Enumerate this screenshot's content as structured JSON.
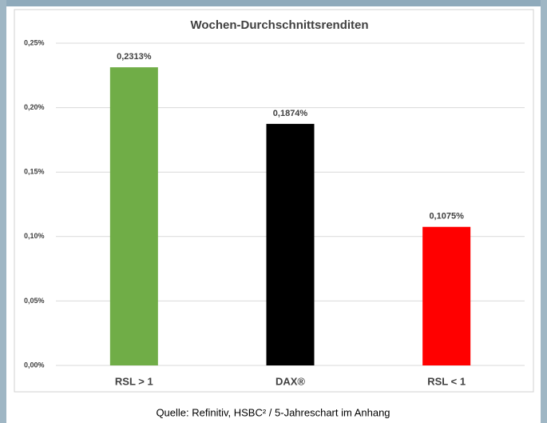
{
  "chart_data": {
    "type": "bar",
    "title": "Wochen-Durchschnittsrenditen",
    "categories": [
      "RSL > 1",
      "DAX®",
      "RSL < 1"
    ],
    "values": [
      0.2313,
      0.1874,
      0.1075
    ],
    "value_labels": [
      "0,2313%",
      "0,1874%",
      "0,1075%"
    ],
    "colors": [
      "#70ad47",
      "#000000",
      "#ff0000"
    ],
    "ylim": [
      0,
      0.25
    ],
    "yticks": [
      {
        "value": 0,
        "label": "0,00%"
      },
      {
        "value": 0.05,
        "label": "0,05%"
      },
      {
        "value": 0.1,
        "label": "0,10%"
      },
      {
        "value": 0.15,
        "label": "0,15%"
      },
      {
        "value": 0.2,
        "label": "0,20%"
      },
      {
        "value": 0.25,
        "label": "0,25%"
      }
    ],
    "grid": true
  },
  "source": "Quelle: Refinitiv, HSBC² / 5-Jahreschart im Anhang"
}
